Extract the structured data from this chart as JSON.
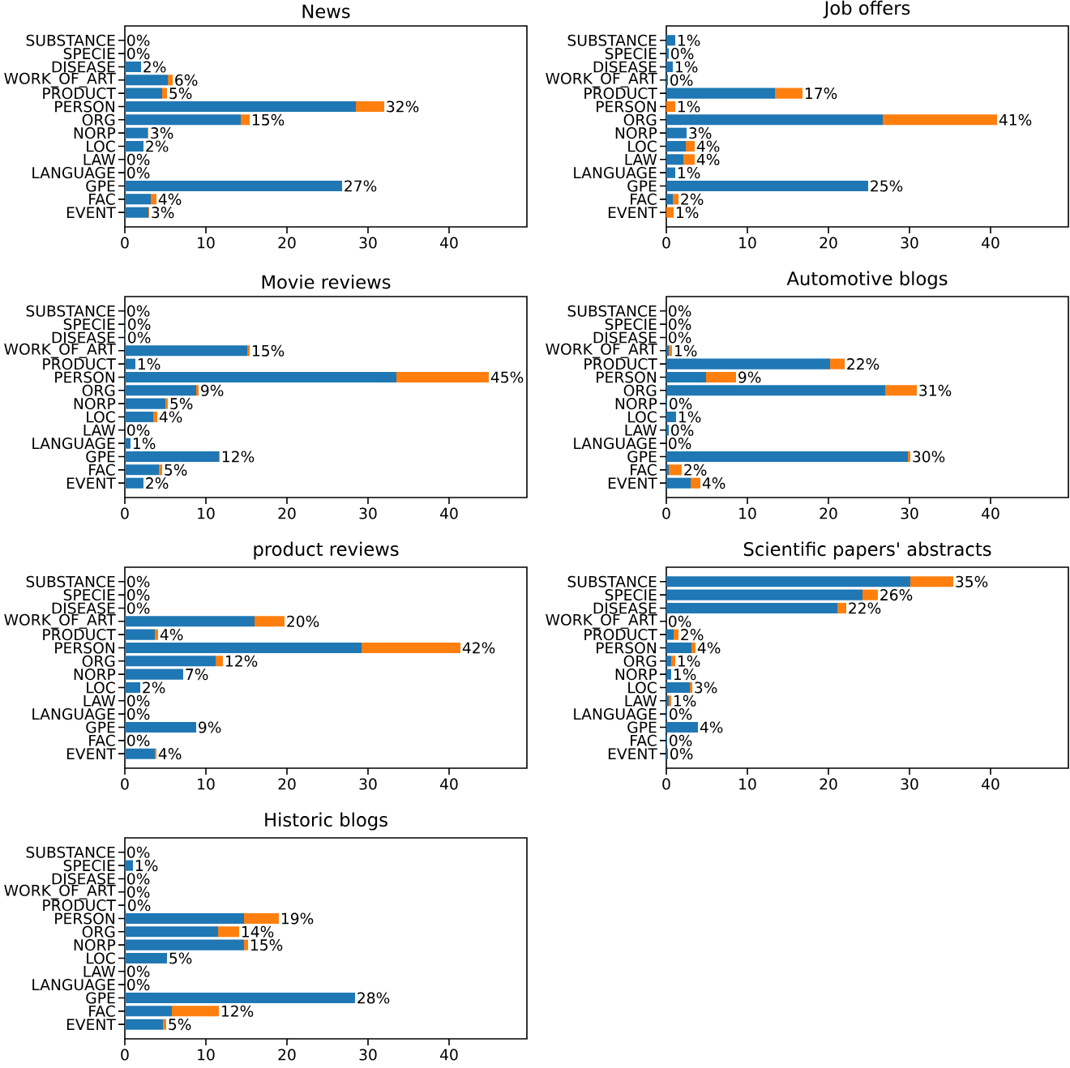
{
  "chart_data": [
    {
      "type": "bar",
      "title": "News",
      "orientation": "horizontal",
      "stacked": true,
      "categories": [
        "SUBSTANCE",
        "SPECIE",
        "DISEASE",
        "WORK_OF_ART",
        "PRODUCT",
        "PERSON",
        "ORG",
        "NORP",
        "LOC",
        "LAW",
        "LANGUAGE",
        "GPE",
        "FAC",
        "EVENT"
      ],
      "xlim": [
        0,
        49.6
      ],
      "xticks": [
        0,
        10,
        20,
        30,
        40
      ],
      "series": [
        {
          "color": "#1f77b4",
          "values": [
            0,
            0,
            2,
            5.3,
            4.6,
            28.5,
            14.3,
            2.8,
            2.3,
            0,
            0,
            26.8,
            3.2,
            2.9
          ]
        },
        {
          "color": "#ff7f0e",
          "values": [
            0,
            0,
            0,
            0.6,
            0.6,
            3.5,
            1.1,
            0.1,
            0,
            0,
            0,
            0,
            0.7,
            0.1
          ]
        }
      ],
      "totals": [
        "0%",
        "0%",
        "2%",
        "6%",
        "5%",
        "32%",
        "15%",
        "3%",
        "2%",
        "0%",
        "0%",
        "27%",
        "4%",
        "3%"
      ]
    },
    {
      "type": "bar",
      "title": "Job offers",
      "orientation": "horizontal",
      "stacked": true,
      "categories": [
        "SUBSTANCE",
        "SPECIE",
        "DISEASE",
        "WORK_OF_ART",
        "PRODUCT",
        "PERSON",
        "ORG",
        "NORP",
        "LOC",
        "LAW",
        "LANGUAGE",
        "GPE",
        "FAC",
        "EVENT"
      ],
      "xlim": [
        0,
        49.6
      ],
      "xticks": [
        0,
        10,
        20,
        30,
        40
      ],
      "series": [
        {
          "color": "#1f77b4",
          "values": [
            1.1,
            0.3,
            0.8,
            0.2,
            13.4,
            0,
            26.7,
            2.5,
            2.4,
            2.1,
            1.1,
            24.9,
            0.8,
            0
          ]
        },
        {
          "color": "#ff7f0e",
          "values": [
            0,
            0,
            0,
            0,
            3.4,
            1.1,
            14.1,
            0,
            1.1,
            1.4,
            0,
            0,
            0.7,
            0.9
          ]
        }
      ],
      "totals": [
        "1%",
        "0%",
        "1%",
        "0%",
        "17%",
        "1%",
        "41%",
        "3%",
        "4%",
        "4%",
        "1%",
        "25%",
        "2%",
        "1%"
      ]
    },
    {
      "type": "bar",
      "title": "Movie reviews",
      "orientation": "horizontal",
      "stacked": true,
      "categories": [
        "SUBSTANCE",
        "SPECIE",
        "DISEASE",
        "WORK_OF_ART",
        "PRODUCT",
        "PERSON",
        "ORG",
        "NORP",
        "LOC",
        "LAW",
        "LANGUAGE",
        "GPE",
        "FAC",
        "EVENT"
      ],
      "xlim": [
        0,
        49.6
      ],
      "xticks": [
        0,
        10,
        20,
        30,
        40
      ],
      "series": [
        {
          "color": "#1f77b4",
          "values": [
            0,
            0.1,
            0.1,
            15.1,
            1.3,
            33.5,
            8.8,
            5,
            3.5,
            0,
            0.7,
            11.6,
            4.2,
            2.3
          ]
        },
        {
          "color": "#ff7f0e",
          "values": [
            0,
            0,
            0,
            0.3,
            0,
            11.4,
            0.3,
            0.3,
            0.5,
            0,
            0,
            0.1,
            0.4,
            0
          ]
        }
      ],
      "totals": [
        "0%",
        "0%",
        "0%",
        "15%",
        "1%",
        "45%",
        "9%",
        "5%",
        "4%",
        "0%",
        "1%",
        "12%",
        "5%",
        "2%"
      ]
    },
    {
      "type": "bar",
      "title": "Automotive blogs",
      "orientation": "horizontal",
      "stacked": true,
      "categories": [
        "SUBSTANCE",
        "SPECIE",
        "DISEASE",
        "WORK_OF_ART",
        "PRODUCT",
        "PERSON",
        "ORG",
        "NORP",
        "LOC",
        "LAW",
        "LANGUAGE",
        "GPE",
        "FAC",
        "EVENT"
      ],
      "xlim": [
        0,
        49.6
      ],
      "xticks": [
        0,
        10,
        20,
        30,
        40
      ],
      "series": [
        {
          "color": "#1f77b4",
          "values": [
            0,
            0,
            0,
            0.3,
            20.2,
            4.9,
            27,
            0.1,
            1.2,
            0.3,
            0,
            29.8,
            0.3,
            3
          ]
        },
        {
          "color": "#ff7f0e",
          "values": [
            0,
            0,
            0,
            0.4,
            1.8,
            3.7,
            3.9,
            0,
            0,
            0,
            0,
            0.3,
            1.6,
            1.2
          ]
        }
      ],
      "totals": [
        "0%",
        "0%",
        "0%",
        "1%",
        "22%",
        "9%",
        "31%",
        "0%",
        "1%",
        "0%",
        "0%",
        "30%",
        "2%",
        "4%"
      ]
    },
    {
      "type": "bar",
      "title": "product reviews",
      "orientation": "horizontal",
      "stacked": true,
      "categories": [
        "SUBSTANCE",
        "SPECIE",
        "DISEASE",
        "WORK_OF_ART",
        "PRODUCT",
        "PERSON",
        "ORG",
        "NORP",
        "LOC",
        "LAW",
        "LANGUAGE",
        "GPE",
        "FAC",
        "EVENT"
      ],
      "xlim": [
        0,
        49.6
      ],
      "xticks": [
        0,
        10,
        20,
        30,
        40
      ],
      "series": [
        {
          "color": "#1f77b4",
          "values": [
            0,
            0,
            0,
            16,
            3.7,
            29.2,
            11.2,
            7.2,
            1.9,
            0,
            0,
            8.8,
            0,
            3.7
          ]
        },
        {
          "color": "#ff7f0e",
          "values": [
            0,
            0,
            0,
            3.7,
            0.4,
            12.2,
            0.9,
            0,
            0,
            0,
            0,
            0,
            0,
            0.2
          ]
        }
      ],
      "totals": [
        "0%",
        "0%",
        "0%",
        "20%",
        "4%",
        "42%",
        "12%",
        "7%",
        "2%",
        "0%",
        "0%",
        "9%",
        "0%",
        "4%"
      ]
    },
    {
      "type": "bar",
      "title": "Scientific papers' abstracts",
      "orientation": "horizontal",
      "stacked": true,
      "categories": [
        "SUBSTANCE",
        "SPECIE",
        "DISEASE",
        "WORK_OF_ART",
        "PRODUCT",
        "PERSON",
        "ORG",
        "NORP",
        "LOC",
        "LAW",
        "LANGUAGE",
        "GPE",
        "FAC",
        "EVENT"
      ],
      "xlim": [
        0,
        49.6
      ],
      "xticks": [
        0,
        10,
        20,
        30,
        40
      ],
      "series": [
        {
          "color": "#1f77b4",
          "values": [
            30.1,
            24.2,
            21.1,
            0,
            0.9,
            3.1,
            0.6,
            0.6,
            2.9,
            0.3,
            0.1,
            3.9,
            0.1,
            0.2
          ]
        },
        {
          "color": "#ff7f0e",
          "values": [
            5.3,
            1.9,
            1.1,
            0,
            0.6,
            0.5,
            0.5,
            0,
            0.3,
            0.3,
            0,
            0,
            0,
            0
          ]
        }
      ],
      "totals": [
        "35%",
        "26%",
        "22%",
        "0%",
        "2%",
        "4%",
        "1%",
        "1%",
        "3%",
        "1%",
        "0%",
        "4%",
        "0%",
        "0%"
      ]
    },
    {
      "type": "bar",
      "title": "Historic blogs",
      "orientation": "horizontal",
      "stacked": true,
      "categories": [
        "SUBSTANCE",
        "SPECIE",
        "DISEASE",
        "WORK_OF_ART",
        "PRODUCT",
        "PERSON",
        "ORG",
        "NORP",
        "LOC",
        "LAW",
        "LANGUAGE",
        "GPE",
        "FAC",
        "EVENT"
      ],
      "xlim": [
        0,
        49.6
      ],
      "xticks": [
        0,
        10,
        20,
        30,
        40
      ],
      "series": [
        {
          "color": "#1f77b4",
          "values": [
            0,
            1,
            0,
            0,
            0.1,
            14.7,
            11.5,
            14.7,
            5.2,
            0,
            0,
            28.4,
            5.8,
            4.7
          ]
        },
        {
          "color": "#ff7f0e",
          "values": [
            0,
            0,
            0,
            0,
            0,
            4.3,
            2.6,
            0.5,
            0,
            0,
            0,
            0,
            5.8,
            0.4
          ]
        }
      ],
      "totals": [
        "0%",
        "1%",
        "0%",
        "0%",
        "0%",
        "19%",
        "14%",
        "15%",
        "5%",
        "0%",
        "0%",
        "28%",
        "12%",
        "5%"
      ]
    }
  ]
}
